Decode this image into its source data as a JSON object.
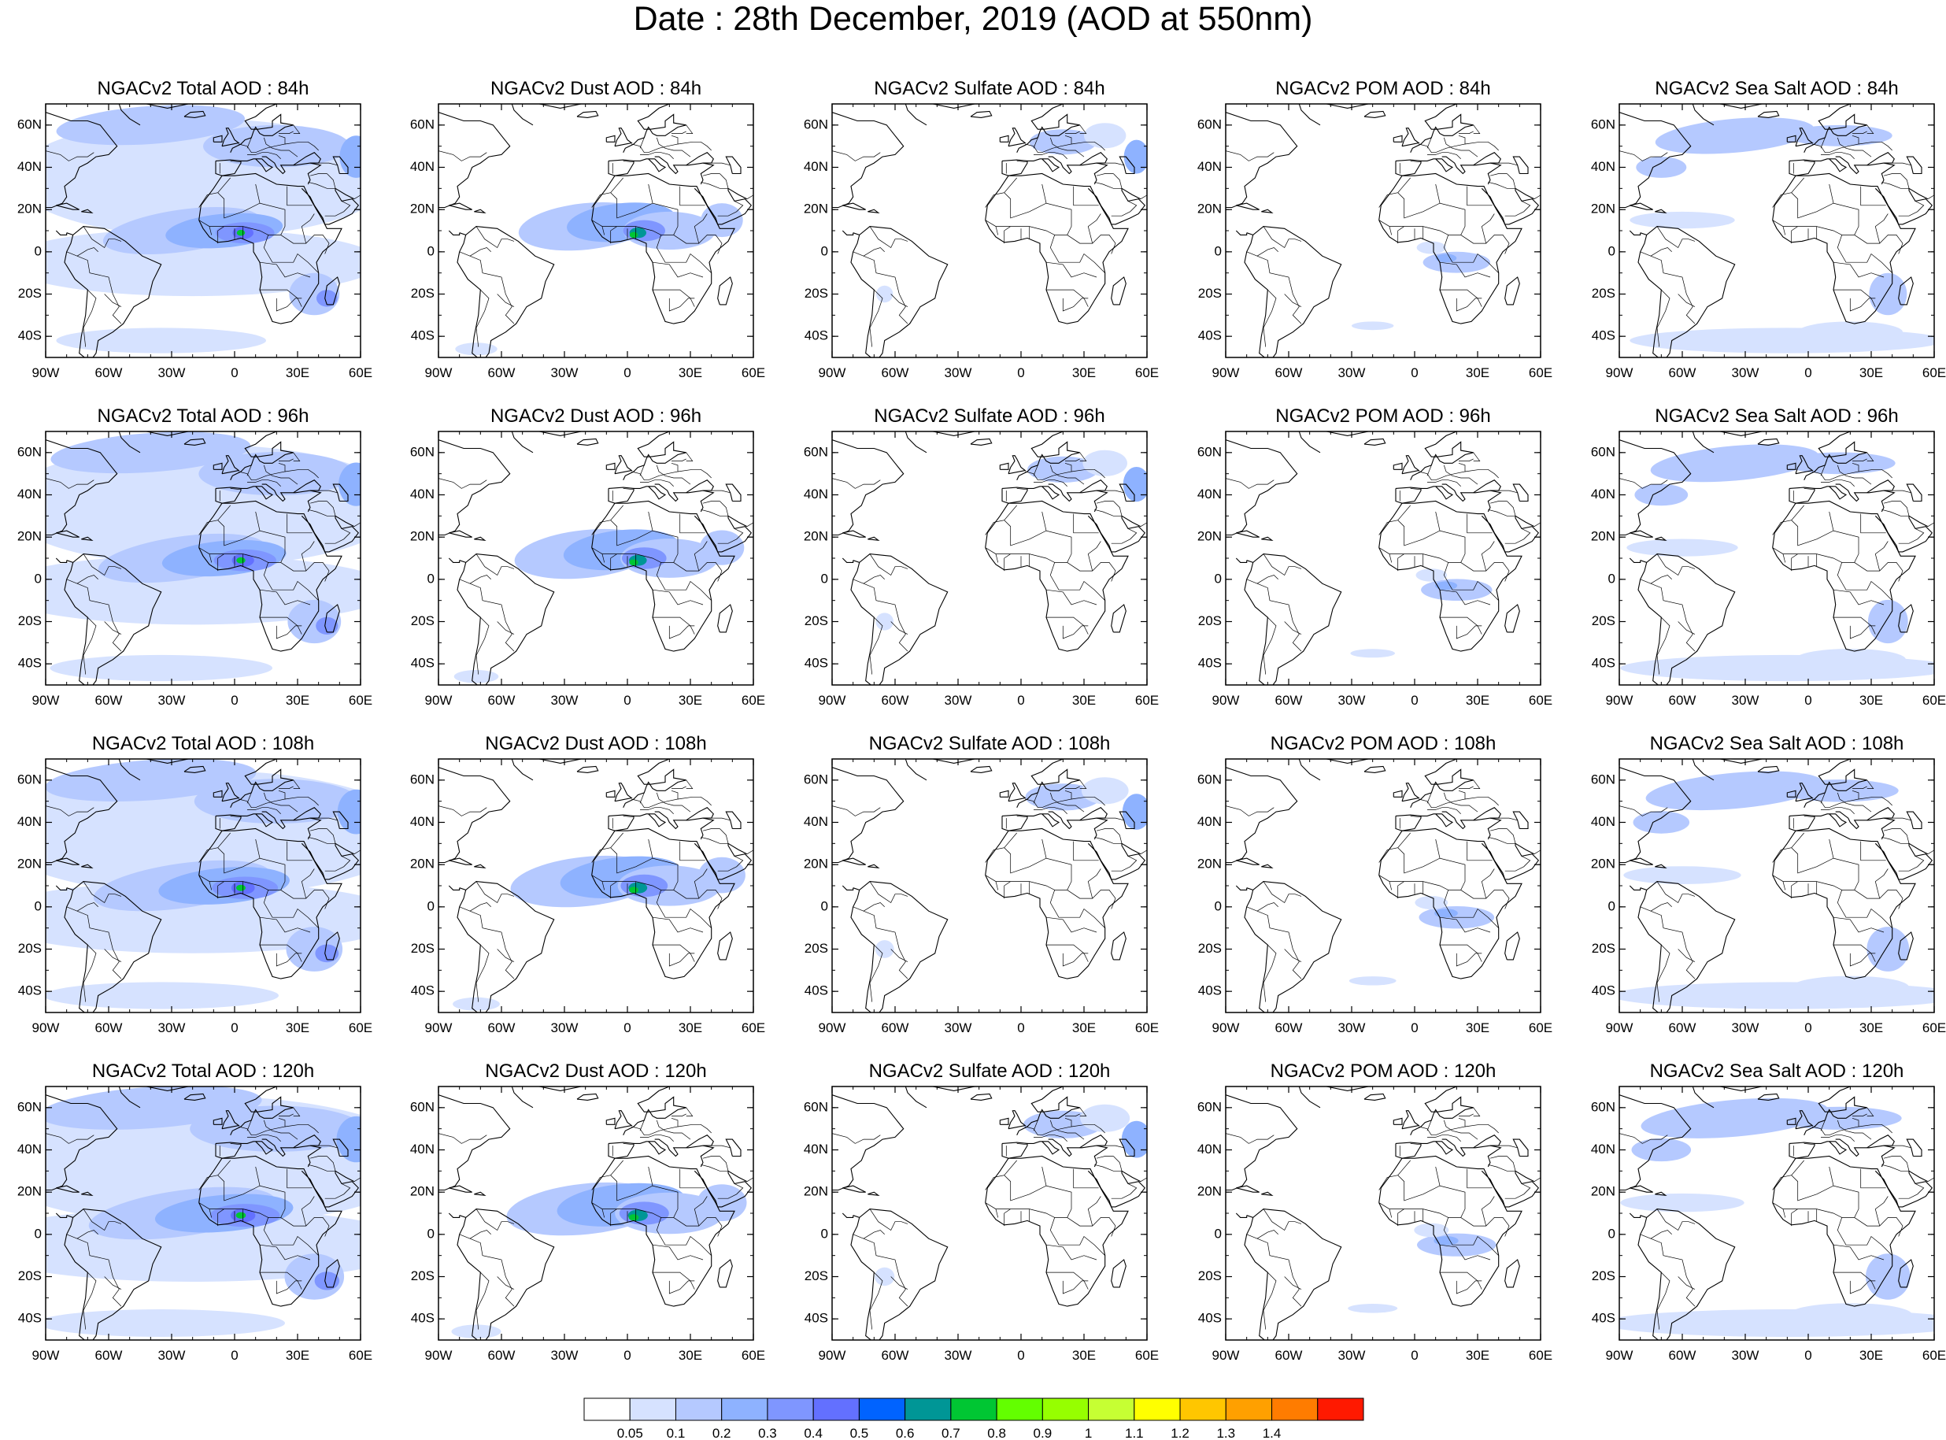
{
  "main_title": "Date : 28th December, 2019 (AOD at 550nm)",
  "panel_titles": [
    [
      "NGACv2 Total AOD : 84h",
      "NGACv2 Dust AOD : 84h",
      "NGACv2 Sulfate AOD : 84h",
      "NGACv2 POM AOD : 84h",
      "NGACv2 Sea Salt AOD : 84h"
    ],
    [
      "NGACv2 Total AOD : 96h",
      "NGACv2 Dust AOD : 96h",
      "NGACv2 Sulfate AOD : 96h",
      "NGACv2 POM AOD : 96h",
      "NGACv2 Sea Salt AOD : 96h"
    ],
    [
      "NGACv2 Total AOD : 108h",
      "NGACv2 Dust AOD : 108h",
      "NGACv2 Sulfate AOD : 108h",
      "NGACv2 POM AOD : 108h",
      "NGACv2 Sea Salt AOD : 108h"
    ],
    [
      "NGACv2 Total AOD : 120h",
      "NGACv2 Dust AOD : 120h",
      "NGACv2 Sulfate AOD : 120h",
      "NGACv2 POM AOD : 120h",
      "NGACv2 Sea Salt  AOD : 120h"
    ]
  ],
  "lat_ticks": [
    "60N",
    "40N",
    "20N",
    "0",
    "20S",
    "40S"
  ],
  "lon_ticks": [
    "90W",
    "60W",
    "30W",
    "0",
    "30E",
    "60E"
  ],
  "map_extent": {
    "lon": [
      -90,
      60
    ],
    "lat": [
      -50,
      70
    ]
  },
  "colorbar": {
    "labels": [
      "0.05",
      "0.1",
      "0.2",
      "0.3",
      "0.4",
      "0.5",
      "0.6",
      "0.7",
      "0.8",
      "0.9",
      "1",
      "1.1",
      "1.2",
      "1.3",
      "1.4"
    ],
    "colors": [
      "#ffffff",
      "#d6e2ff",
      "#b5c9ff",
      "#8eb2ff",
      "#7f96ff",
      "#6370ff",
      "#0063ff",
      "#009696",
      "#00c633",
      "#63ff00",
      "#96ff00",
      "#c6ff33",
      "#ffff00",
      "#ffc600",
      "#ffa000",
      "#ff7c00",
      "#ff1900"
    ]
  }
}
